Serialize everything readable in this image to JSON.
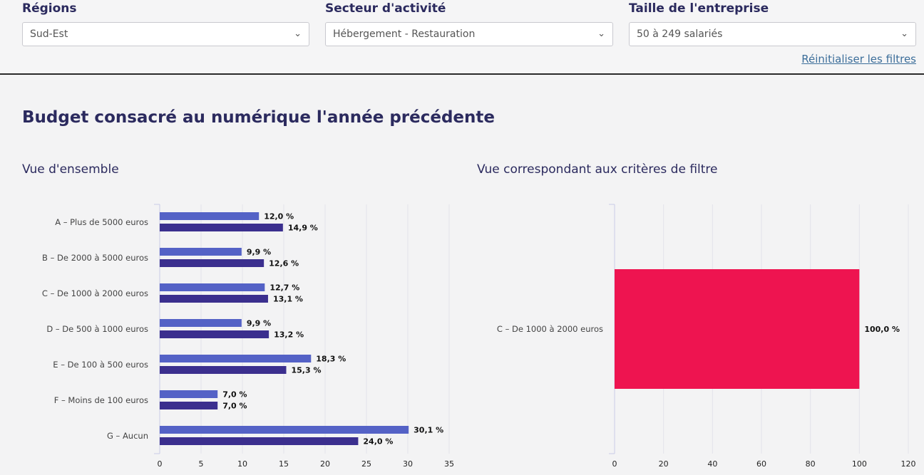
{
  "filters": {
    "regions": {
      "label": "Régions",
      "value": "Sud-Est"
    },
    "sector": {
      "label": "Secteur d'activité",
      "value": "Hébergement - Restauration"
    },
    "size": {
      "label": "Taille de l'entreprise",
      "value": "50 à 249 salariés"
    },
    "reset_label": "Réinitialiser les filtres"
  },
  "page_title": "Budget consacré au numérique l'année précédente",
  "colors": {
    "series_light": "#5462c6",
    "series_dark": "#3b2f8e",
    "filter_bar": "#ee1450"
  },
  "chart_data": [
    {
      "type": "bar",
      "orientation": "horizontal",
      "title": "Vue d'ensemble",
      "categories": [
        "A – Plus de 5000 euros",
        "B – De 2000 à 5000 euros",
        "C – De 1000 à 2000 euros",
        "D – De 500 à 1000 euros",
        "E – De 100 à 500 euros",
        "F – Moins de 100 euros",
        "G – Aucun"
      ],
      "series": [
        {
          "values": [
            12.0,
            9.9,
            12.7,
            9.9,
            18.3,
            7.0,
            30.1
          ],
          "labels": [
            "12,0 %",
            "9,9 %",
            "12,7 %",
            "9,9 %",
            "18,3 %",
            "7,0 %",
            "30,1 %"
          ]
        },
        {
          "values": [
            14.9,
            12.6,
            13.1,
            13.2,
            15.3,
            7.0,
            24.0
          ],
          "labels": [
            "14,9 %",
            "12,6 %",
            "13,1 %",
            "13,2 %",
            "15,3 %",
            "7,0 %",
            "24,0 %"
          ]
        }
      ],
      "xlim": [
        0,
        35
      ],
      "xticks": [
        "0",
        "5",
        "10",
        "15",
        "20",
        "25",
        "30",
        "35"
      ],
      "grid": true
    },
    {
      "type": "bar",
      "orientation": "horizontal",
      "title": "Vue correspondant aux critères de filtre",
      "categories": [
        "C – De 1000 à 2000 euros"
      ],
      "series": [
        {
          "values": [
            100.0
          ],
          "labels": [
            "100,0 %"
          ]
        }
      ],
      "xlim": [
        0,
        120
      ],
      "xticks": [
        "0",
        "20",
        "40",
        "60",
        "80",
        "100",
        "120"
      ],
      "grid": true
    }
  ]
}
